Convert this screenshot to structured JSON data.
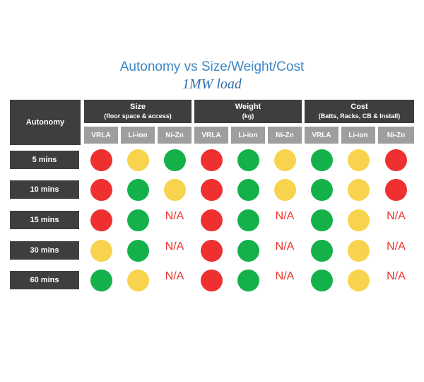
{
  "title": "Autonomy vs Size/Weight/Cost",
  "subtitle": "1MW load",
  "colors": {
    "red": "#ee3030",
    "yellow": "#f8d44e",
    "green": "#14b14b",
    "na": "#e8332b",
    "header_dark": "#3e3e3e",
    "header_gray": "#9e9e9e"
  },
  "headers": {
    "autonomy": "Autonomy",
    "groups": [
      {
        "label": "Size",
        "sub": "(floor space & access)"
      },
      {
        "label": "Weight",
        "sub": "(kg)"
      },
      {
        "label": "Cost",
        "sub": "(Batts, Racks, CB & Install)"
      }
    ],
    "columns": [
      "VRLA",
      "Li-ion",
      "Ni-Zn",
      "VRLA",
      "Li-ion",
      "Ni-Zn",
      "VRLA",
      "Li-ion",
      "Ni-Zn"
    ]
  },
  "na_text": "N/A",
  "rows": [
    {
      "label": "5 mins",
      "cells": [
        "red",
        "yellow",
        "green",
        "red",
        "green",
        "yellow",
        "green",
        "yellow",
        "red"
      ]
    },
    {
      "label": "10 mins",
      "cells": [
        "red",
        "green",
        "yellow",
        "red",
        "green",
        "yellow",
        "green",
        "yellow",
        "red"
      ]
    },
    {
      "label": "15 mins",
      "cells": [
        "red",
        "green",
        "N/A",
        "red",
        "green",
        "N/A",
        "green",
        "yellow",
        "N/A"
      ]
    },
    {
      "label": "30 mins",
      "cells": [
        "yellow",
        "green",
        "N/A",
        "red",
        "green",
        "N/A",
        "green",
        "yellow",
        "N/A"
      ]
    },
    {
      "label": "60 mins",
      "cells": [
        "green",
        "yellow",
        "N/A",
        "red",
        "green",
        "N/A",
        "green",
        "yellow",
        "N/A"
      ]
    }
  ]
}
